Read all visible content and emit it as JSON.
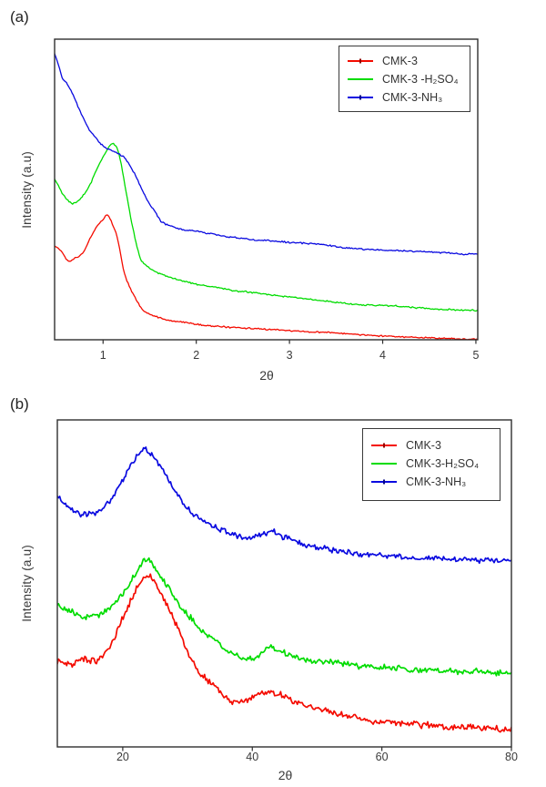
{
  "chart_data": [
    {
      "id": "a",
      "type": "line",
      "panel_label": "(a)",
      "xlabel": "2θ",
      "ylabel": "Intensity (a.u)",
      "xlim": [
        0.48,
        5.02
      ],
      "ylim": [
        0,
        100
      ],
      "xticks": [
        1,
        2,
        3,
        4,
        5
      ],
      "grid": false,
      "legend_position": "top-right",
      "y_units": "arbitrary intensity, fraction of panel height (0-100)",
      "series": [
        {
          "name": "CMK-3",
          "color": "#f40b00",
          "noise": 0.3,
          "legend_marker": true,
          "points": [
            [
              0.48,
              31.2
            ],
            [
              0.55,
              29.5
            ],
            [
              0.63,
              26.2
            ],
            [
              0.7,
              27.3
            ],
            [
              0.78,
              28.8
            ],
            [
              0.87,
              34.2
            ],
            [
              0.95,
              38.2
            ],
            [
              1.0,
              40.0
            ],
            [
              1.05,
              41.5
            ],
            [
              1.1,
              38.5
            ],
            [
              1.15,
              34.2
            ],
            [
              1.23,
              22.1
            ],
            [
              1.32,
              15.5
            ],
            [
              1.43,
              10.0
            ],
            [
              1.55,
              8.0
            ],
            [
              1.7,
              6.5
            ],
            [
              1.9,
              5.5
            ],
            [
              2.15,
              4.5
            ],
            [
              2.4,
              3.9
            ],
            [
              2.8,
              3.1
            ],
            [
              3.2,
              2.4
            ],
            [
              3.6,
              1.8
            ],
            [
              4.0,
              1.3
            ],
            [
              4.5,
              0.7
            ],
            [
              5.02,
              0.3
            ]
          ]
        },
        {
          "name": "CMK-3 -H₂SO₄",
          "color": "#00dc00",
          "noise": 0.3,
          "legend_marker": false,
          "points": [
            [
              0.48,
              53.5
            ],
            [
              0.56,
              49.0
            ],
            [
              0.66,
              45.5
            ],
            [
              0.75,
              46.8
            ],
            [
              0.85,
              51.0
            ],
            [
              0.95,
              57.9
            ],
            [
              1.02,
              62.1
            ],
            [
              1.1,
              65.5
            ],
            [
              1.17,
              62.0
            ],
            [
              1.26,
              47.3
            ],
            [
              1.33,
              36.0
            ],
            [
              1.4,
              27.3
            ],
            [
              1.5,
              24.0
            ],
            [
              1.62,
              22.1
            ],
            [
              1.8,
              20.3
            ],
            [
              2.05,
              18.5
            ],
            [
              2.4,
              16.7
            ],
            [
              2.8,
              15.2
            ],
            [
              3.2,
              13.8
            ],
            [
              3.7,
              12.1
            ],
            [
              4.1,
              11.5
            ],
            [
              4.55,
              10.6
            ],
            [
              5.02,
              10.0
            ]
          ]
        },
        {
          "name": "CMK-3-NH₃",
          "color": "#0a0ae0",
          "noise": 0.35,
          "legend_marker": true,
          "points": [
            [
              0.48,
              95.0
            ],
            [
              0.56,
              87.5
            ],
            [
              0.63,
              84.2
            ],
            [
              0.73,
              77.6
            ],
            [
              0.84,
              70.6
            ],
            [
              0.93,
              67.0
            ],
            [
              1.0,
              64.5
            ],
            [
              1.1,
              62.8
            ],
            [
              1.23,
              60.6
            ],
            [
              1.35,
              54.5
            ],
            [
              1.46,
              47.3
            ],
            [
              1.55,
              43.0
            ],
            [
              1.62,
              39.4
            ],
            [
              1.75,
              37.5
            ],
            [
              1.85,
              36.7
            ],
            [
              2.1,
              35.5
            ],
            [
              2.34,
              34.2
            ],
            [
              2.6,
              33.3
            ],
            [
              3.0,
              32.4
            ],
            [
              3.3,
              31.8
            ],
            [
              3.6,
              30.6
            ],
            [
              4.0,
              30.0
            ],
            [
              4.5,
              29.4
            ],
            [
              5.02,
              28.8
            ]
          ]
        }
      ]
    },
    {
      "id": "b",
      "type": "line",
      "panel_label": "(b)",
      "xlabel": "2θ",
      "ylabel": "Intensity (a.u)",
      "xlim": [
        9.9,
        80
      ],
      "ylim": [
        0,
        100
      ],
      "xticks": [
        20,
        40,
        60,
        80
      ],
      "grid": false,
      "legend_position": "top-right",
      "y_units": "arbitrary intensity, fraction of panel height (0-100)",
      "series": [
        {
          "name": "CMK-3",
          "color": "#f40b00",
          "noise": 1.2,
          "legend_marker": true,
          "points": [
            [
              9.9,
              26.4
            ],
            [
              11,
              25.8
            ],
            [
              12.2,
              25.2
            ],
            [
              13.8,
              26.9
            ],
            [
              15.2,
              26.2
            ],
            [
              16.5,
              27.5
            ],
            [
              18,
              31.0
            ],
            [
              19.5,
              37.5
            ],
            [
              21,
              44.0
            ],
            [
              22.3,
              49.5
            ],
            [
              23.9,
              53.6
            ],
            [
              25,
              50.5
            ],
            [
              26.5,
              45.5
            ],
            [
              28.1,
              38.9
            ],
            [
              29.5,
              32.5
            ],
            [
              31.5,
              25.0
            ],
            [
              33,
              21.5
            ],
            [
              34.7,
              18.6
            ],
            [
              36,
              16.5
            ],
            [
              37.1,
              14.7
            ],
            [
              38.5,
              15.2
            ],
            [
              40,
              16.2
            ],
            [
              41.5,
              17.5
            ],
            [
              42.7,
              18.1
            ],
            [
              44,
              17.2
            ],
            [
              45.5,
              16.0
            ],
            [
              47.5,
              14.2
            ],
            [
              50,
              13.1
            ],
            [
              53,
              11.5
            ],
            [
              55.5,
              10.3
            ],
            [
              57.5,
              9.2
            ],
            [
              60,
              8.9
            ],
            [
              62,
              8.3
            ],
            [
              64,
              7.8
            ],
            [
              66.5,
              7.3
            ],
            [
              69,
              6.9
            ],
            [
              71,
              6.1
            ],
            [
              73.5,
              6.3
            ],
            [
              76,
              6.2
            ],
            [
              80,
              6.1
            ]
          ]
        },
        {
          "name": "CMK-3-H₂SO₄",
          "color": "#00dc00",
          "noise": 1.1,
          "legend_marker": false,
          "points": [
            [
              9.9,
              43.6
            ],
            [
              11,
              42.3
            ],
            [
              12.2,
              41.1
            ],
            [
              13.8,
              39.7
            ],
            [
              15.2,
              40.1
            ],
            [
              16.5,
              40.3
            ],
            [
              18,
              42.2
            ],
            [
              19.5,
              45.5
            ],
            [
              21,
              50.0
            ],
            [
              22.3,
              54.5
            ],
            [
              23.5,
              57.8
            ],
            [
              24.6,
              56.3
            ],
            [
              26,
              51.4
            ],
            [
              27.5,
              47.5
            ],
            [
              29,
              43.0
            ],
            [
              30.5,
              39.5
            ],
            [
              32,
              35.6
            ],
            [
              33.5,
              33.8
            ],
            [
              35,
              31.5
            ],
            [
              36.5,
              29.5
            ],
            [
              38,
              27.8
            ],
            [
              39.5,
              27.0
            ],
            [
              41,
              28.3
            ],
            [
              42.7,
              31.1
            ],
            [
              44,
              29.8
            ],
            [
              45.5,
              28.6
            ],
            [
              47,
              27.2
            ],
            [
              49,
              26.5
            ],
            [
              51.5,
              26.2
            ],
            [
              54,
              25.4
            ],
            [
              57,
              24.5
            ],
            [
              60,
              23.9
            ],
            [
              63,
              23.5
            ],
            [
              66.5,
              23.1
            ],
            [
              70,
              22.8
            ],
            [
              74,
              22.5
            ],
            [
              80,
              22.2
            ]
          ]
        },
        {
          "name": "CMK-3-NH₃",
          "color": "#0a0ae0",
          "noise": 1.0,
          "legend_marker": true,
          "points": [
            [
              9.9,
              76.9
            ],
            [
              11,
              74.5
            ],
            [
              12,
              72.8
            ],
            [
              13.5,
              70.8
            ],
            [
              15,
              71.5
            ],
            [
              16.5,
              71.7
            ],
            [
              18,
              75.0
            ],
            [
              19.5,
              79.5
            ],
            [
              21,
              85.0
            ],
            [
              22.3,
              88.5
            ],
            [
              23.2,
              90.3
            ],
            [
              24.3,
              89.0
            ],
            [
              25.5,
              86.5
            ],
            [
              27,
              81.5
            ],
            [
              28.5,
              77.0
            ],
            [
              30,
              72.8
            ],
            [
              31.5,
              70.0
            ],
            [
              33,
              68.0
            ],
            [
              34.5,
              66.7
            ],
            [
              36,
              65.3
            ],
            [
              37.5,
              64.2
            ],
            [
              39,
              63.5
            ],
            [
              40.5,
              63.6
            ],
            [
              42,
              64.6
            ],
            [
              43,
              65.3
            ],
            [
              44.5,
              63.9
            ],
            [
              46,
              62.8
            ],
            [
              48,
              61.1
            ],
            [
              50,
              60.2
            ],
            [
              52.5,
              59.2
            ],
            [
              55,
              58.4
            ],
            [
              58,
              57.8
            ],
            [
              61,
              57.3
            ],
            [
              64,
              57.0
            ],
            [
              68,
              56.7
            ],
            [
              72,
              56.5
            ],
            [
              76,
              56.3
            ],
            [
              80,
              56.1
            ]
          ]
        }
      ]
    }
  ]
}
